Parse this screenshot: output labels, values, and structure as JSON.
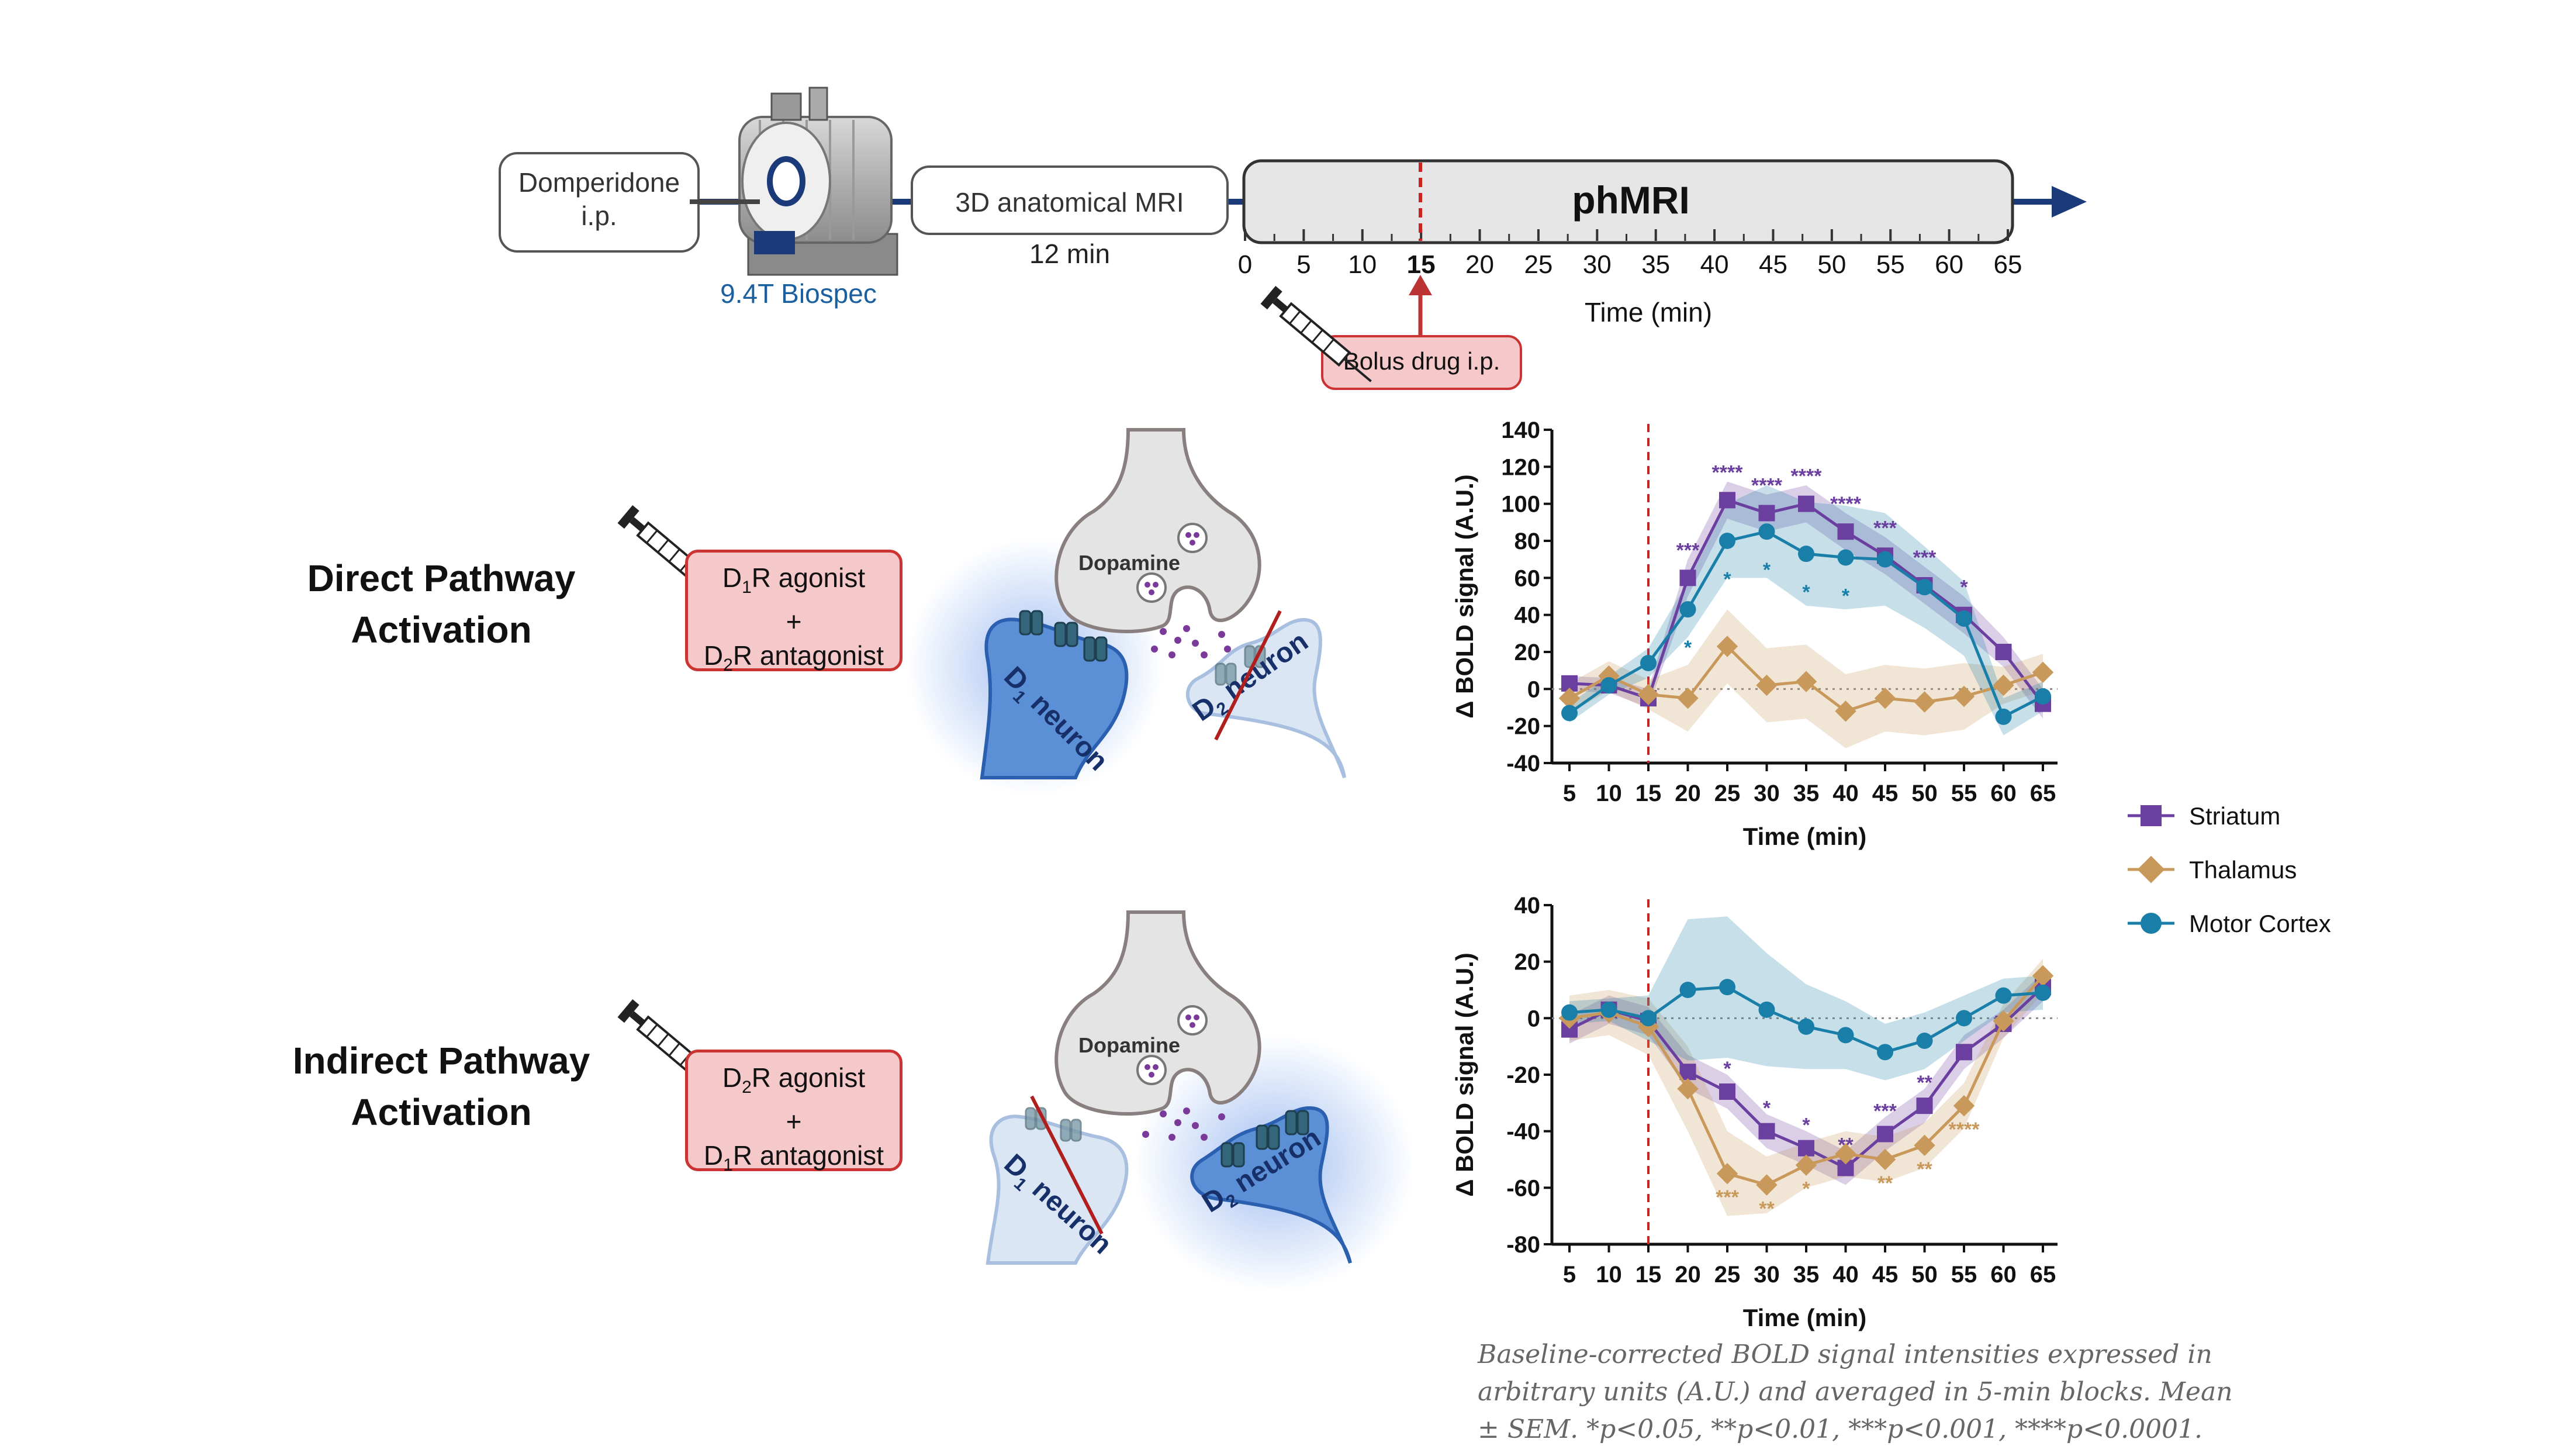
{
  "timeline": {
    "domperidone_label": [
      "Domperidone",
      "i.p."
    ],
    "scanner_label": "9.4T Biospec",
    "anatomical_label": "3D anatomical MRI",
    "anatomical_duration": "12 min",
    "phmri_label": "phMRI",
    "ticks": [
      "0",
      "5",
      "10",
      "15",
      "20",
      "25",
      "30",
      "35",
      "40",
      "45",
      "50",
      "55",
      "60",
      "65"
    ],
    "highlight_tick": "15",
    "axis_label": "Time (min)",
    "bolus_label": "Bolus drug i.p.",
    "colors": {
      "axis": "#1a3a7a",
      "bolus": "#cc3333",
      "box_fill": "#e6e6e6"
    }
  },
  "direct": {
    "title": [
      "Direct Pathway",
      "Activation"
    ],
    "drug_line1_pre": "D",
    "drug_line1_sub": "1",
    "drug_line1_post": "R agonist",
    "drug_plus": "+",
    "drug_line2_pre": "D",
    "drug_line2_sub": "2",
    "drug_line2_post": "R antagonist",
    "dopamine_label": "Dopamine",
    "left_neuron": {
      "pre": "D",
      "sub": "1",
      "post": " neuron"
    },
    "right_neuron": {
      "pre": "D",
      "sub": "2",
      "post": " neuron"
    }
  },
  "indirect": {
    "title": [
      "Indirect Pathway",
      "Activation"
    ],
    "drug_line1_pre": "D",
    "drug_line1_sub": "2",
    "drug_line1_post": "R agonist",
    "drug_plus": "+",
    "drug_line2_pre": "D",
    "drug_line2_sub": "1",
    "drug_line2_post": "R antagonist",
    "dopamine_label": "Dopamine",
    "left_neuron": {
      "pre": "D",
      "sub": "1",
      "post": " neuron"
    },
    "right_neuron": {
      "pre": "D",
      "sub": "2",
      "post": " neuron"
    }
  },
  "legend": [
    {
      "name": "Striatum",
      "color": "#6b3fa0",
      "marker": "square"
    },
    {
      "name": "Thalamus",
      "color": "#c8995a",
      "marker": "diamond"
    },
    {
      "name": "Motor Cortex",
      "color": "#1a7fa8",
      "marker": "circle"
    }
  ],
  "caption": "Baseline-corrected BOLD signal intensities expressed in arbitrary units (A.U.) and averaged in 5-min blocks. Mean ± SEM. *p<0.05, **p<0.01, ***p<0.001, ****p<0.0001.",
  "chart_data": [
    {
      "type": "line",
      "x": [
        5,
        10,
        15,
        20,
        25,
        30,
        35,
        40,
        45,
        50,
        55,
        60,
        65
      ],
      "xlabel": "Time (min)",
      "ylabel": "Δ BOLD signal (A.U.)",
      "ylim": [
        -40,
        140
      ],
      "yticks": [
        -40,
        -20,
        0,
        20,
        40,
        60,
        80,
        100,
        120,
        140
      ],
      "vline_x": 15,
      "series": [
        {
          "name": "Striatum",
          "values": [
            3,
            2,
            -5,
            60,
            102,
            95,
            100,
            85,
            72,
            56,
            40,
            20,
            -8
          ],
          "sem": [
            4,
            4,
            5,
            10,
            10,
            10,
            10,
            10,
            10,
            10,
            10,
            8,
            8
          ],
          "stars": [
            "",
            "",
            "",
            "***",
            "****",
            "****",
            "****",
            "****",
            "***",
            "***",
            "*",
            "",
            ""
          ]
        },
        {
          "name": "Thalamus",
          "values": [
            -5,
            7,
            -3,
            -5,
            23,
            2,
            4,
            -12,
            -5,
            -7,
            -4,
            2,
            9
          ],
          "sem": [
            8,
            8,
            8,
            18,
            20,
            20,
            20,
            20,
            18,
            18,
            18,
            10,
            10
          ],
          "stars": [
            "",
            "",
            "",
            "",
            "",
            "",
            "",
            "",
            "",
            "",
            "",
            "",
            ""
          ]
        },
        {
          "name": "Motor Cortex",
          "values": [
            -13,
            2,
            14,
            43,
            80,
            85,
            73,
            71,
            70,
            55,
            38,
            -15,
            -4
          ],
          "sem": [
            5,
            5,
            8,
            15,
            20,
            25,
            28,
            28,
            25,
            22,
            20,
            10,
            8
          ],
          "stars": [
            "",
            "",
            "",
            "*",
            "*",
            "*",
            "*",
            "*",
            "",
            "",
            "",
            "",
            ""
          ]
        }
      ]
    },
    {
      "type": "line",
      "x": [
        5,
        10,
        15,
        20,
        25,
        30,
        35,
        40,
        45,
        50,
        55,
        60,
        65
      ],
      "xlabel": "Time (min)",
      "ylabel": "Δ BOLD signal (A.U.)",
      "ylim": [
        -80,
        40
      ],
      "yticks": [
        -80,
        -60,
        -40,
        -20,
        0,
        20,
        40
      ],
      "vline_x": 15,
      "series": [
        {
          "name": "Striatum",
          "values": [
            -4,
            3,
            -1,
            -19,
            -26,
            -40,
            -46,
            -53,
            -41,
            -31,
            -12,
            -2,
            11
          ],
          "sem": [
            5,
            5,
            5,
            6,
            6,
            6,
            6,
            6,
            6,
            6,
            6,
            5,
            5
          ],
          "stars": [
            "",
            "",
            "",
            "",
            "*",
            "*",
            "*",
            "**",
            "***",
            "**",
            "",
            "",
            ""
          ]
        },
        {
          "name": "Thalamus",
          "values": [
            0,
            2,
            -3,
            -25,
            -55,
            -59,
            -52,
            -48,
            -50,
            -45,
            -31,
            -1,
            15
          ],
          "sem": [
            8,
            8,
            10,
            15,
            15,
            10,
            8,
            8,
            8,
            8,
            8,
            6,
            6
          ],
          "stars": [
            "",
            "",
            "",
            "",
            "***",
            "**",
            "*",
            "",
            "**",
            "**",
            "****",
            "",
            ""
          ]
        },
        {
          "name": "Motor Cortex",
          "values": [
            2,
            3,
            0,
            10,
            11,
            3,
            -3,
            -6,
            -12,
            -8,
            0,
            8,
            9
          ],
          "sem": [
            4,
            4,
            8,
            25,
            25,
            20,
            15,
            12,
            10,
            10,
            8,
            6,
            6
          ],
          "stars": [
            "",
            "",
            "",
            "",
            "",
            "",
            "",
            "",
            "",
            "",
            "",
            "",
            ""
          ]
        }
      ]
    }
  ]
}
